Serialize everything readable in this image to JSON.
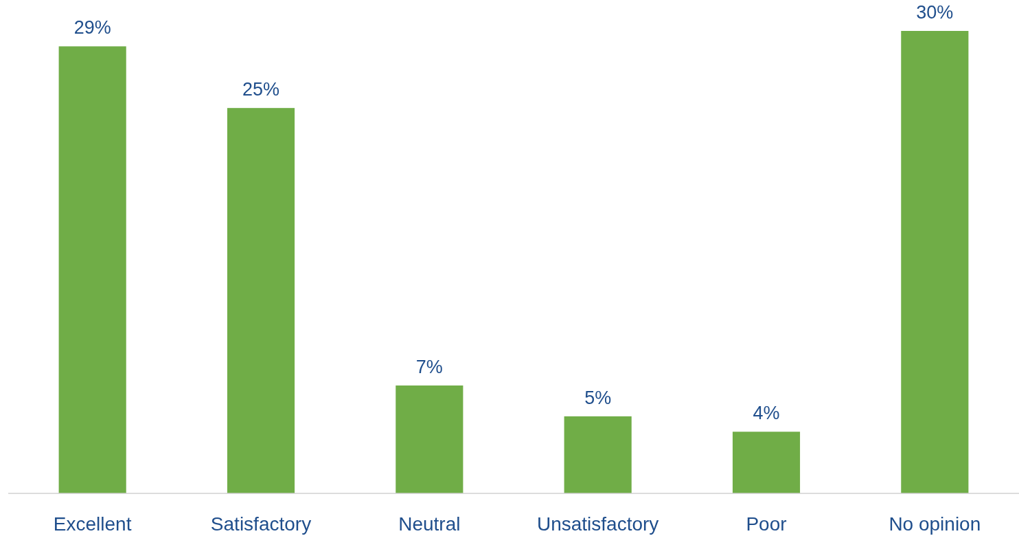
{
  "chart_data": {
    "type": "bar",
    "categories": [
      "Excellent",
      "Satisfactory",
      "Neutral",
      "Unsatisfactory",
      "Poor",
      "No opinion"
    ],
    "values": [
      29,
      25,
      7,
      5,
      4,
      30
    ],
    "value_labels": [
      "29%",
      "25%",
      "7%",
      "5%",
      "4%",
      "30%"
    ],
    "color": "#70ad47",
    "grid": false
  }
}
